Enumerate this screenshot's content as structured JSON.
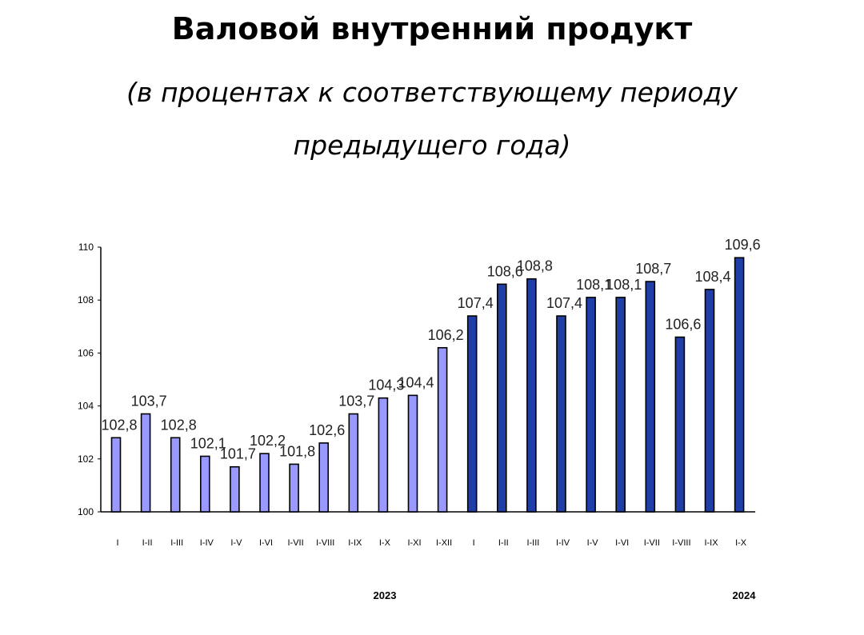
{
  "title": "Валовой внутренний продукт",
  "subtitle_line1": "(в процентах к соответствующему периоду",
  "subtitle_line2": "предыдущего года)",
  "chart_data": {
    "type": "bar",
    "categories": [
      "I",
      "I-II",
      "I-III",
      "I-IV",
      "I-V",
      "I-VI",
      "I-VII",
      "I-VIII",
      "I-IX",
      "I-X",
      "I-XI",
      "I-XII",
      "I",
      "I-II",
      "I-III",
      "I-IV",
      "I-V",
      "I-VI",
      "I-VII",
      "I-VIII",
      "I-IX",
      "I-X"
    ],
    "values": [
      102.8,
      103.7,
      102.8,
      102.1,
      101.7,
      102.2,
      101.8,
      102.6,
      103.7,
      104.3,
      104.4,
      106.2,
      107.4,
      108.6,
      108.8,
      107.4,
      108.1,
      108.1,
      108.7,
      106.6,
      108.4,
      109.6
    ],
    "value_labels": [
      "102,8",
      "103,7",
      "102,8",
      "102,1",
      "101,7",
      "102,2",
      "101,8",
      "102,6",
      "103,7",
      "104,3",
      "104,4",
      "106,2",
      "107,4",
      "108,6",
      "108,8",
      "107,4",
      "108,1",
      "108,1",
      "108,7",
      "106,6",
      "108,4",
      "109,6"
    ],
    "groups": [
      {
        "label": "2023",
        "count": 12,
        "color": "#9999ff"
      },
      {
        "label": "2024",
        "count": 10,
        "color": "#1f3fa6"
      }
    ],
    "ylim": [
      100,
      110
    ],
    "yticks": [
      100,
      102,
      104,
      106,
      108,
      110
    ],
    "grid": false
  }
}
